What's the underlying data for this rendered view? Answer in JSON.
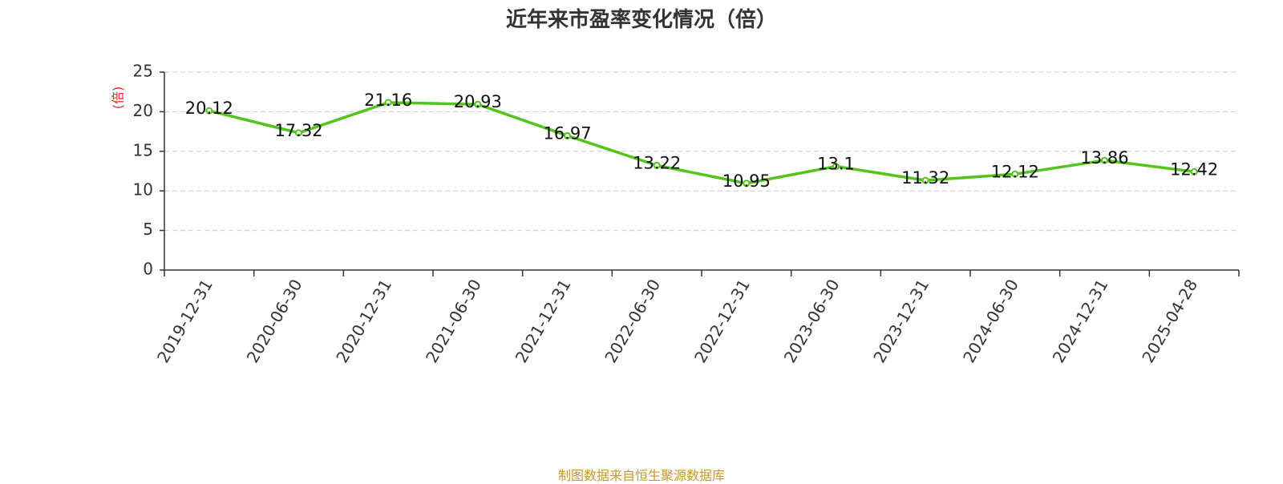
{
  "chart_data": {
    "type": "line",
    "title": "近年来市盈率变化情况（倍）",
    "ylabel": "(倍)",
    "xlabel": "",
    "categories": [
      "2019-12-31",
      "2020-06-30",
      "2020-12-31",
      "2021-06-30",
      "2021-12-31",
      "2022-06-30",
      "2022-12-31",
      "2023-06-30",
      "2023-12-31",
      "2024-06-30",
      "2024-12-31",
      "2025-04-28"
    ],
    "series": [
      {
        "values": [
          20.12,
          17.32,
          21.16,
          20.93,
          16.97,
          13.22,
          10.95,
          13.1,
          11.32,
          12.12,
          13.86,
          12.42
        ],
        "labels": [
          "20.12",
          "17.32",
          "21.16",
          "20.93",
          "16.97",
          "13.22",
          "10.95",
          "13.1",
          "11.32",
          "12.12",
          "13.86",
          "12.42"
        ]
      }
    ],
    "ylim": [
      0,
      25
    ],
    "yticks": [
      0,
      5,
      10,
      15,
      20,
      25
    ],
    "grid": true,
    "colors": {
      "line": "#52c41a",
      "ylabel": "#e8262a",
      "axis": "#333333",
      "grid": "#cccccc"
    }
  },
  "footer": {
    "source": "制图数据来自恒生聚源数据库"
  }
}
